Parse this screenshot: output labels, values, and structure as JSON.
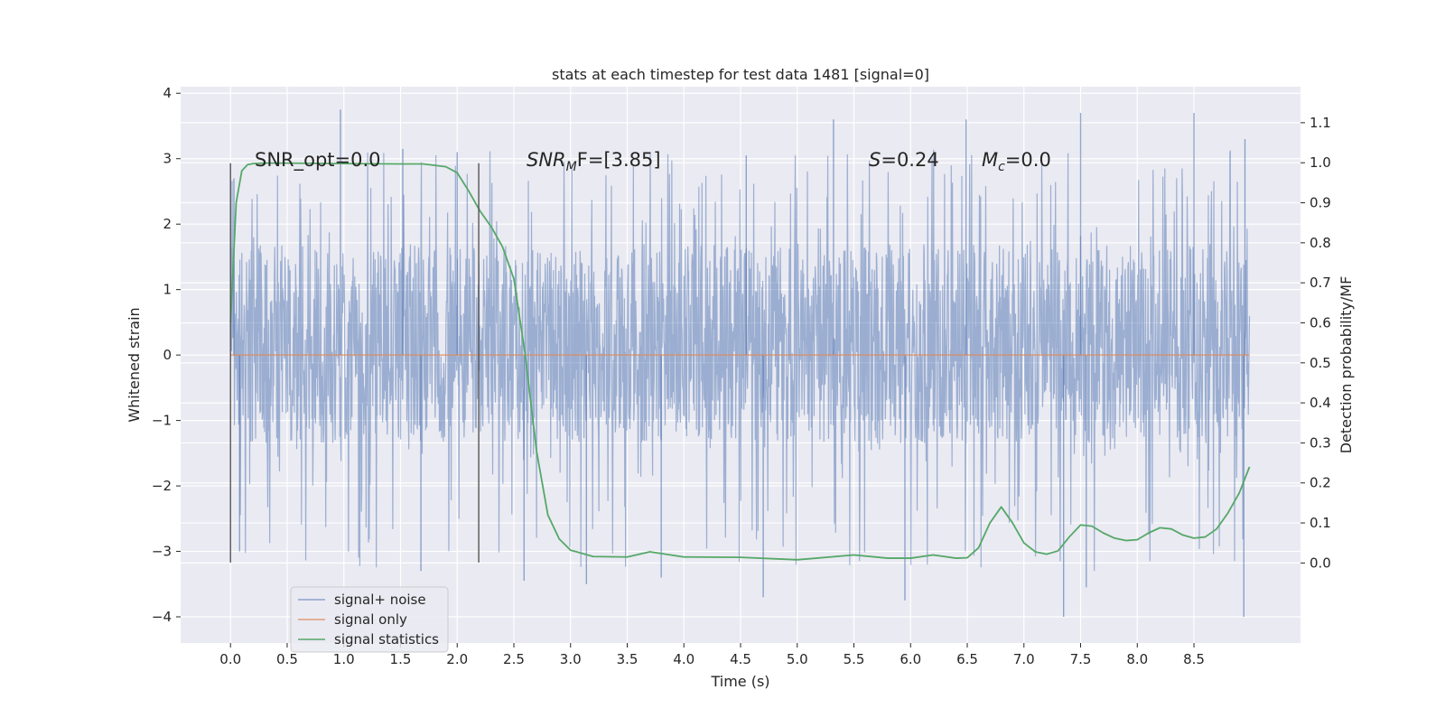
{
  "chart_data": {
    "type": "line",
    "title": "stats at each timestep for test data 1481 [signal=0]",
    "xlabel": "Time (s)",
    "ylabel": "Whitened strain",
    "y2label": "Detection probability/MF",
    "xlim": [
      -0.44,
      9.44
    ],
    "ylim": [
      -4.4,
      4.1
    ],
    "y2lim": [
      -0.2,
      1.19
    ],
    "x_ticks": [
      "0.0",
      "0.5",
      "1.0",
      "1.5",
      "2.0",
      "2.5",
      "3.0",
      "3.5",
      "4.0",
      "4.5",
      "5.0",
      "5.5",
      "6.0",
      "6.5",
      "7.0",
      "7.5",
      "8.0",
      "8.5"
    ],
    "y_ticks": [
      "4",
      "3",
      "2",
      "1",
      "0",
      "−1",
      "−2",
      "−3",
      "−4"
    ],
    "y2_ticks": [
      "1.1",
      "1.0",
      "0.9",
      "0.8",
      "0.7",
      "0.6",
      "0.5",
      "0.4",
      "0.3",
      "0.2",
      "0.1",
      "0.0"
    ],
    "grid": true,
    "legend_position": "lower-left",
    "annotations": {
      "snr_opt": "SNR_opt=0.0",
      "snr_mf_main": "SNR",
      "snr_mf_sub": "M",
      "snr_mf_rest": "F=[3.85]",
      "s_main": "S",
      "s_rest": "=0.24",
      "mc_main": "M",
      "mc_sub": "c",
      "mc_rest": "=0.0"
    },
    "vertical_lines": [
      0.0,
      2.19
    ],
    "series": [
      {
        "name": "signal+ noise",
        "color": "#4c72b0",
        "axis": "left",
        "noise_profile": {
          "x_start": 0.0,
          "x_end": 8.99,
          "dense_min": -1.35,
          "dense_max": 1.7,
          "peak_max": 3.75,
          "peak_min": -4.0
        },
        "peaks": [
          [
            0.03,
            2.7
          ],
          [
            0.97,
            3.75
          ],
          [
            1.52,
            3.15
          ],
          [
            2.0,
            3.1
          ],
          [
            4.55,
            3.05
          ],
          [
            5.32,
            3.6
          ],
          [
            6.49,
            3.6
          ],
          [
            7.5,
            3.7
          ],
          [
            8.5,
            3.7
          ],
          [
            8.95,
            3.3
          ]
        ],
        "troughs": [
          [
            0.08,
            -3.0
          ],
          [
            1.68,
            -3.3
          ],
          [
            2.59,
            -3.45
          ],
          [
            3.14,
            -3.5
          ],
          [
            3.8,
            -3.4
          ],
          [
            4.7,
            -3.7
          ],
          [
            5.95,
            -3.75
          ],
          [
            7.35,
            -4.0
          ],
          [
            7.55,
            -3.55
          ],
          [
            8.94,
            -4.0
          ]
        ]
      },
      {
        "name": "signal only",
        "color": "#dd8452",
        "axis": "left",
        "x": [
          0.0,
          8.99
        ],
        "y": [
          0.0,
          0.0
        ]
      },
      {
        "name": "signal statistics",
        "color": "#55a868",
        "axis": "right",
        "x": [
          0.0,
          0.05,
          0.1,
          0.15,
          0.2,
          0.3,
          0.5,
          1.0,
          1.5,
          1.7,
          1.9,
          2.0,
          2.1,
          2.2,
          2.3,
          2.4,
          2.5,
          2.6,
          2.7,
          2.8,
          2.9,
          3.0,
          3.2,
          3.5,
          3.7,
          4.0,
          4.5,
          5.0,
          5.5,
          5.8,
          6.0,
          6.2,
          6.4,
          6.5,
          6.6,
          6.7,
          6.8,
          6.9,
          7.0,
          7.1,
          7.2,
          7.3,
          7.4,
          7.5,
          7.6,
          7.7,
          7.8,
          7.9,
          8.0,
          8.1,
          8.2,
          8.3,
          8.4,
          8.5,
          8.6,
          8.7,
          8.8,
          8.9,
          8.99
        ],
        "y": [
          0.6,
          0.9,
          0.98,
          0.995,
          0.998,
          0.999,
          0.999,
          0.998,
          0.997,
          0.997,
          0.99,
          0.975,
          0.93,
          0.88,
          0.84,
          0.79,
          0.71,
          0.52,
          0.28,
          0.12,
          0.06,
          0.032,
          0.016,
          0.015,
          0.028,
          0.015,
          0.014,
          0.008,
          0.02,
          0.012,
          0.012,
          0.02,
          0.012,
          0.013,
          0.038,
          0.1,
          0.14,
          0.1,
          0.05,
          0.028,
          0.022,
          0.03,
          0.065,
          0.095,
          0.092,
          0.075,
          0.062,
          0.056,
          0.058,
          0.075,
          0.088,
          0.085,
          0.07,
          0.062,
          0.065,
          0.085,
          0.125,
          0.175,
          0.24
        ]
      }
    ]
  }
}
